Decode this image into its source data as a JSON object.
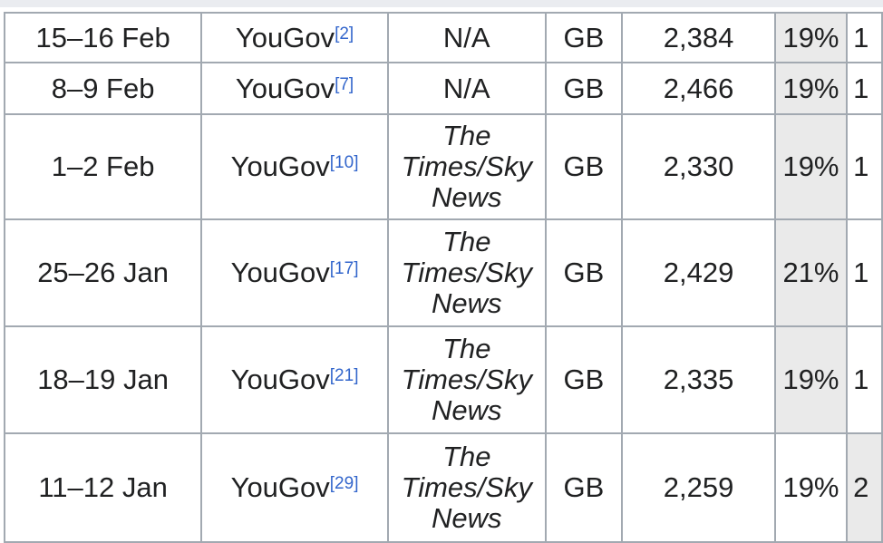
{
  "rows": [
    {
      "date": "15–16 Feb",
      "pollster": "YouGov",
      "ref": "[2]",
      "publisher": "N/A",
      "publisher_italic": false,
      "area": "GB",
      "sample": "2,384",
      "pct": "19%",
      "next": "1",
      "shaded": true
    },
    {
      "date": "8–9 Feb",
      "pollster": "YouGov",
      "ref": "[7]",
      "publisher": "N/A",
      "publisher_italic": false,
      "area": "GB",
      "sample": "2,466",
      "pct": "19%",
      "next": "1",
      "shaded": true
    },
    {
      "date": "1–2 Feb",
      "pollster": "YouGov",
      "ref": "[10]",
      "publisher": "The Times/Sky News",
      "publisher_italic": true,
      "area": "GB",
      "sample": "2,330",
      "pct": "19%",
      "next": "1",
      "shaded": true
    },
    {
      "date": "25–26 Jan",
      "pollster": "YouGov",
      "ref": "[17]",
      "publisher": "The Times/Sky News",
      "publisher_italic": true,
      "area": "GB",
      "sample": "2,429",
      "pct": "21%",
      "next": "1",
      "shaded": true
    },
    {
      "date": "18–19 Jan",
      "pollster": "YouGov",
      "ref": "[21]",
      "publisher": "The Times/Sky News",
      "publisher_italic": true,
      "area": "GB",
      "sample": "2,335",
      "pct": "19%",
      "next": "1",
      "shaded": true
    },
    {
      "date": "11–12 Jan",
      "pollster": "YouGov",
      "ref": "[29]",
      "publisher": "The Times/Sky News",
      "publisher_italic": true,
      "area": "GB",
      "sample": "2,259",
      "pct": "19%",
      "next": "2",
      "shaded": false
    }
  ],
  "colors": {
    "shade": "#eaeaea",
    "border": "#a2a9b1",
    "link": "#3366cc"
  }
}
